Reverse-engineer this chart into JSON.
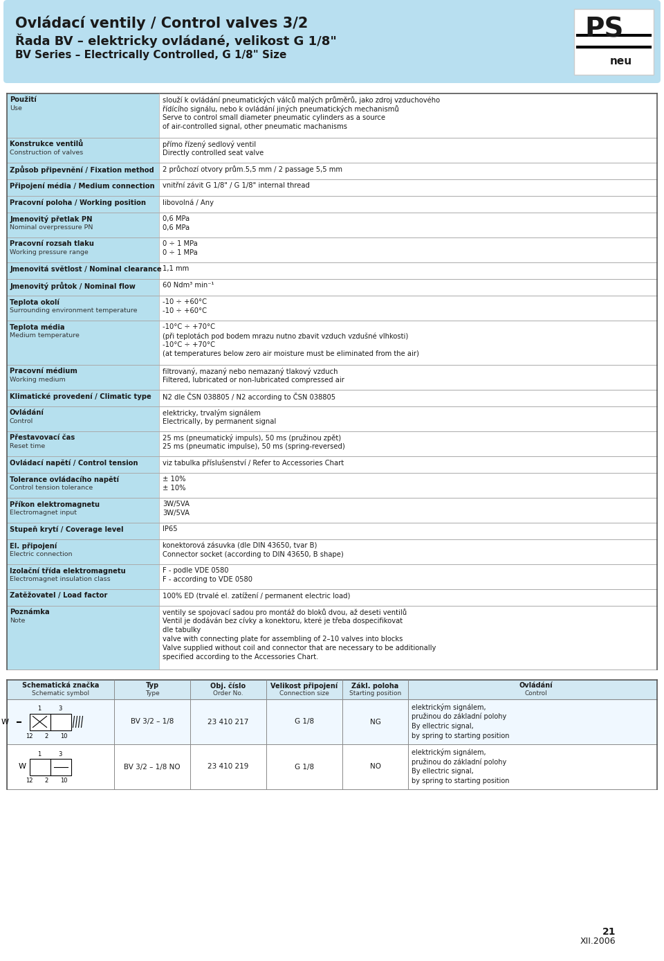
{
  "title_line1": "Ovládací ventily / Control valves 3/2",
  "title_line2": "Řada BV – elektricky ovládané, velikost G 1/8\"",
  "title_line3": "BV Series – Electrically Controlled, G 1/8\" Size",
  "header_bg": "#b8d9e8",
  "header_bg_alt": "#cce4f0",
  "row_label_bg": "#a8d4e8",
  "page_bg": "#ffffff",
  "rows": [
    {
      "label_cz": "Použití",
      "label_en": "Use",
      "value": "slouží k ovládání pneumatických válců malých průměrů, jako zdroj vzduchového\nřídícího signálu, nebo k ovládání jiných pneumatických mechanismů\nServe to control small diameter pneumatic cylinders as a source\nof air-controlled signal, other pneumatic machanisms",
      "highlight": true
    },
    {
      "label_cz": "Konstrukce ventilů",
      "label_en": "Construction of valves",
      "value": "přímo řízený sedlový ventil\nDirectly controlled seat valve",
      "highlight": true
    },
    {
      "label_cz": "Způsob připevnění / Fixation method",
      "label_en": "",
      "value": "2 průchozí otvory prům.5,5 mm / 2 passage 5,5 mm",
      "highlight": true
    },
    {
      "label_cz": "Připojení média / Medium connection",
      "label_en": "",
      "value": "vnitřní závit G 1/8\" / G 1/8\" internal thread",
      "highlight": true
    },
    {
      "label_cz": "Pracovní poloha / Working position",
      "label_en": "",
      "value": "libovolná / Any",
      "highlight": true
    },
    {
      "label_cz": "Jmenovitý přetlak PN",
      "label_en": "Nominal overpressure PN",
      "value": "0,6 MPa\n0,6 MPa",
      "highlight": true
    },
    {
      "label_cz": "Pracovní rozsah tlaku",
      "label_en": "Working pressure range",
      "value": "0 ÷ 1 MPa\n0 ÷ 1 MPa",
      "highlight": true
    },
    {
      "label_cz": "Jmenovitá světlost / Nominal clearance",
      "label_en": "",
      "value": "1,1 mm",
      "highlight": true
    },
    {
      "label_cz": "Jmenovitý průtok / Nominal flow",
      "label_en": "",
      "value": "60 Ndm³ min⁻¹",
      "highlight": true
    },
    {
      "label_cz": "Teplota okolí",
      "label_en": "Surrounding environment temperature",
      "value": "-10 ÷ +60°C\n-10 ÷ +60°C",
      "highlight": true
    },
    {
      "label_cz": "Teplota média",
      "label_en": "Medium temperature",
      "value": "-10°C ÷ +70°C\n(při teplotách pod bodem mrazu nutno zbavit vzduch vzdušné vlhkosti)\n-10°C ÷ +70°C\n(at temperatures below zero air moisture must be eliminated from the air)",
      "highlight": true
    },
    {
      "label_cz": "Pracovní médium",
      "label_en": "Working medium",
      "value": "filtrovaný, mazaný nebo nemazaný tlakový vzduch\nFiltered, lubricated or non-lubricated compressed air",
      "highlight": true
    },
    {
      "label_cz": "Klimatické provedení / Climatic type",
      "label_en": "",
      "value": "N2 dle ČSN 038805 / N2 according to ČSN 038805",
      "highlight": true
    },
    {
      "label_cz": "Ovládání",
      "label_en": "Control",
      "value": "elektricky, trvalým signálem\nElectrically, by permanent signal",
      "highlight": true
    },
    {
      "label_cz": "Přestavovací čas",
      "label_en": "Reset time",
      "value": "25 ms (pneumatický impuls), 50 ms (pružinou zpět)\n25 ms (pneumatic impulse), 50 ms (spring-reversed)",
      "highlight": true
    },
    {
      "label_cz": "Ovládací napětí / Control tension",
      "label_en": "",
      "value": "viz tabulka příslušenství / Refer to Accessories Chart",
      "highlight": true
    },
    {
      "label_cz": "Tolerance ovládacího napětí",
      "label_en": "Control tension tolerance",
      "value": "± 10%\n± 10%",
      "highlight": true
    },
    {
      "label_cz": "Příkon elektromagnetu",
      "label_en": "Electromagnet input",
      "value": "3W/5VA\n3W/5VA",
      "highlight": true
    },
    {
      "label_cz": "Stupeň krytí / Coverage level",
      "label_en": "",
      "value": "IP65",
      "highlight": true
    },
    {
      "label_cz": "El. připojení",
      "label_en": "Electric connection",
      "value": "konektorová zásuvka (dle DIN 43650, tvar B)\nConnector socket (according to DIN 43650, B shape)",
      "highlight": true
    },
    {
      "label_cz": "Izolační třída elektromagnetu",
      "label_en": "Electromagnet insulation class",
      "value": "F - podle VDE 0580\nF - according to VDE 0580",
      "highlight": true
    },
    {
      "label_cz": "Zatěžovatel / Load factor",
      "label_en": "",
      "value": "100% ED (trvalé el. zatížení / permanent electric load)",
      "highlight": true
    },
    {
      "label_cz": "Poznámka",
      "label_en": "Note",
      "value": "ventily se spojovací sadou pro montáž do bloků dvou, až deseti ventilů\nVentil je dodáván bez cívky a konektoru, které je třeba dospecifikovat\ndle tabulky\nvalve with connecting plate for assembling of 2–10 valves into blocks\nValve supplied without coil and connector that are necessary to be additionally\nspecified according to the Accessories Chart.",
      "highlight": true
    }
  ],
  "table_headers": [
    "Schematická značka\nSchematic symbol",
    "Typ\nType",
    "Obj. číslo\nOrder No.",
    "Velikost připojení\nConnection size",
    "Zákl. poloha\nStarting position",
    "Ovládání\nControl"
  ],
  "table_rows": [
    {
      "symbol": "bv_32_1",
      "typ": "BV 3/2 – 1/8",
      "obj": "23 410 217",
      "vel": "G 1/8",
      "poloha": "NG",
      "control": "elektrickým signálem,\npružinou do základní polohy\nBy ellectric signal,\nby spring to starting position"
    },
    {
      "symbol": "bv_32_2",
      "typ": "BV 3/2 – 1/8 NO",
      "obj": "23 410 219",
      "vel": "G 1/8",
      "poloha": "NO",
      "control": "elektrickým signálem,\npružinou do základní polohy\nBy ellectric signal,\nby spring to starting position"
    }
  ],
  "page_number": "21",
  "page_date": "XII.2006"
}
